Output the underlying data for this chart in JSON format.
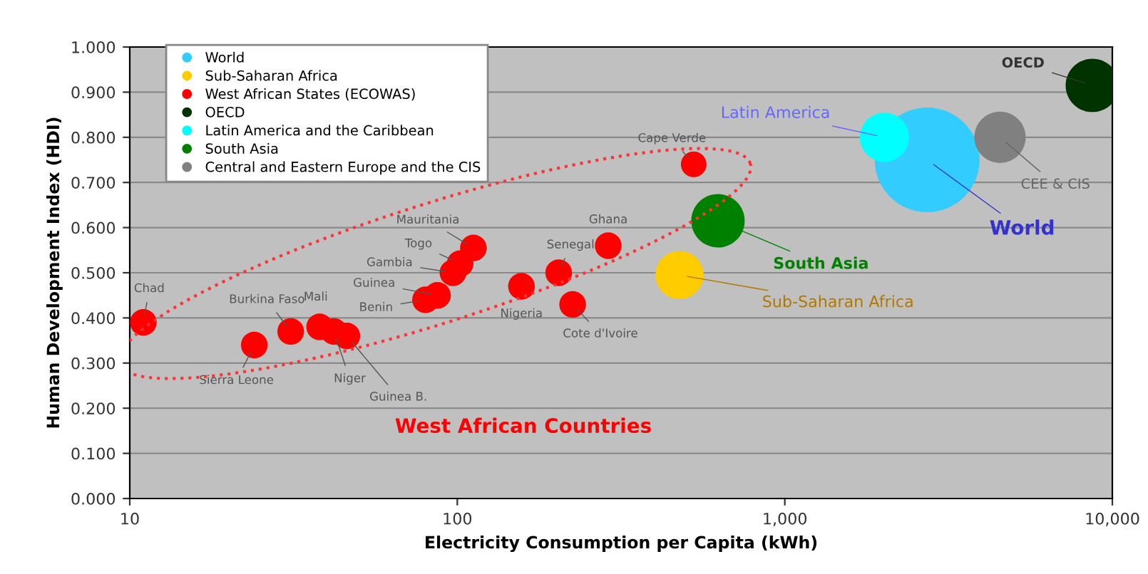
{
  "chart_data": {
    "type": "bubble",
    "xlabel": "Electricity Consumption per Capita (kWh)",
    "ylabel": "Human Development Index (HDI)",
    "log": "x",
    "grid": "y",
    "legend": "top left",
    "marker": "circle",
    "xlim": [
      10,
      10000
    ],
    "xticks": [
      10,
      {
        "value": 100,
        "label": "100"
      },
      {
        "value": 1000,
        "label": "1,000"
      },
      {
        "value": 10000,
        "label": "10,000"
      }
    ],
    "ylim": [
      0,
      1
    ],
    "yticks": [
      {
        "value": 0,
        "label": "0.000"
      },
      {
        "value": 0.1,
        "label": "0.100"
      },
      {
        "value": 0.2,
        "label": "0.200"
      },
      {
        "value": 0.3,
        "label": "0.300"
      },
      {
        "value": 0.4,
        "label": "0.400"
      },
      {
        "value": 0.5,
        "label": "0.500"
      },
      {
        "value": 0.6,
        "label": "0.600"
      },
      {
        "value": 0.7,
        "label": "0.700"
      },
      {
        "value": 0.8,
        "label": "0.800"
      },
      {
        "value": 0.9,
        "label": "0.900"
      },
      {
        "value": 1,
        "label": "1.000"
      }
    ],
    "series": [
      {
        "name": "World",
        "color": "#33ccff",
        "x": [
          2720
        ],
        "values": [
          0.75
        ],
        "sizes": [
          1
        ]
      },
      {
        "name": "Sub-Saharan Africa",
        "color": "#ffcc00",
        "x": [
          477
        ],
        "values": [
          0.495
        ],
        "sizes": [
          0.21
        ]
      },
      {
        "name": "West African States (ECOWAS)",
        "color": "#ff0000",
        "x": [
          11,
          24,
          31,
          38,
          42,
          46,
          80,
          87,
          97,
          102,
          112,
          157,
          204,
          225,
          289,
          527
        ],
        "values": [
          0.39,
          0.34,
          0.37,
          0.38,
          0.37,
          0.36,
          0.44,
          0.45,
          0.5,
          0.52,
          0.555,
          0.47,
          0.5,
          0.43,
          0.56,
          0.74
        ],
        "sizes": [
          0.065,
          0.065,
          0.065,
          0.065,
          0.065,
          0.065,
          0.065,
          0.065,
          0.065,
          0.065,
          0.065,
          0.065,
          0.065,
          0.065,
          0.065,
          0.06
        ]
      },
      {
        "name": "OECD",
        "color": "#003300",
        "x": [
          8690
        ],
        "values": [
          0.915
        ],
        "sizes": [
          0.26
        ]
      },
      {
        "name": "Latin America and the Caribbean",
        "color": "#00ffff",
        "x": [
          2014
        ],
        "values": [
          0.8
        ],
        "sizes": [
          0.22
        ]
      },
      {
        "name": "South Asia",
        "color": "#008000",
        "x": [
          625
        ],
        "values": [
          0.615
        ],
        "sizes": [
          0.26
        ]
      },
      {
        "name": "Central and Eastern Europe and the CIS",
        "color": "#808080",
        "x": [
          4540
        ],
        "values": [
          0.8
        ],
        "sizes": [
          0.24
        ]
      }
    ],
    "annotations": [
      {
        "text": "Chad",
        "x": 11,
        "y": 0.39
      },
      {
        "text": "Burkina Faso",
        "x": 31,
        "y": 0.37
      },
      {
        "text": "Sierra Leone",
        "x": 24,
        "y": 0.34
      },
      {
        "text": "Mali",
        "x": 38,
        "y": 0.38
      },
      {
        "text": "Niger",
        "x": 42,
        "y": 0.37
      },
      {
        "text": "Guinea B.",
        "x": 46,
        "y": 0.36
      },
      {
        "text": "Mauritania",
        "x": 112,
        "y": 0.555
      },
      {
        "text": "Togo",
        "x": 102,
        "y": 0.52
      },
      {
        "text": "Gambia",
        "x": 97,
        "y": 0.5
      },
      {
        "text": "Guinea",
        "x": 87,
        "y": 0.45
      },
      {
        "text": "Benin",
        "x": 80,
        "y": 0.44
      },
      {
        "text": "Nigeria",
        "x": 157,
        "y": 0.47
      },
      {
        "text": "Senegal",
        "x": 204,
        "y": 0.5
      },
      {
        "text": "Cote d'Ivoire",
        "x": 225,
        "y": 0.43
      },
      {
        "text": "Ghana",
        "x": 289,
        "y": 0.56
      },
      {
        "text": "Cape Verde",
        "x": 527,
        "y": 0.74
      },
      {
        "text": "Latin America",
        "x": 2014,
        "y": 0.8
      },
      {
        "text": "World",
        "x": 2720,
        "y": 0.75
      },
      {
        "text": "South Asia",
        "x": 625,
        "y": 0.615
      },
      {
        "text": "Sub-Saharan Africa",
        "x": 477,
        "y": 0.495
      },
      {
        "text": "CEE & CIS",
        "x": 4540,
        "y": 0.8
      },
      {
        "text": "OECD",
        "x": 8690,
        "y": 0.915
      },
      "West African Countries"
    ]
  }
}
